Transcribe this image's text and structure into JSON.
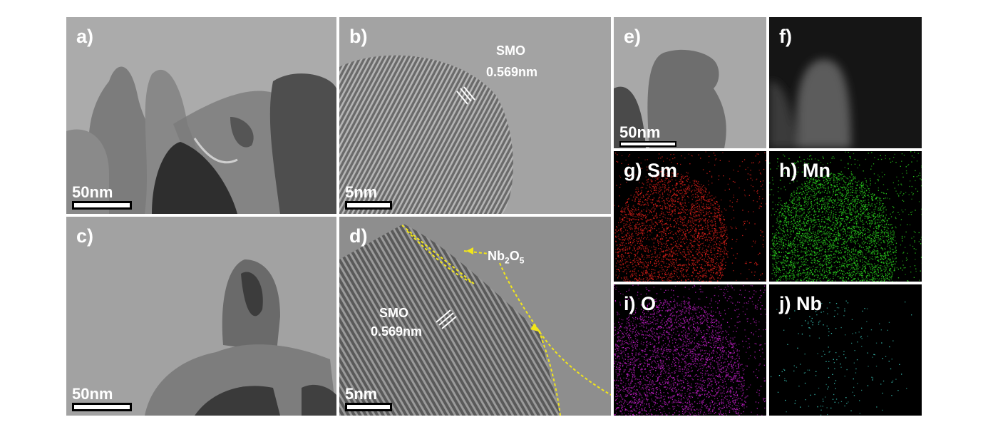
{
  "panels": {
    "a": {
      "label": "a)",
      "scale": "50nm"
    },
    "b": {
      "label": "b)",
      "scale": "5nm",
      "phase": "SMO",
      "spacing": "0.569nm"
    },
    "c": {
      "label": "c)",
      "scale": "50nm"
    },
    "d": {
      "label": "d)",
      "scale": "5nm",
      "phase": "SMO",
      "spacing": "0.569nm",
      "coating": "Nb",
      "coating_sub1": "2",
      "coating_mid": "O",
      "coating_sub2": "5"
    },
    "e": {
      "label": "e)",
      "scale": "50nm"
    },
    "f": {
      "label": "f)"
    },
    "g": {
      "label": "g) Sm",
      "color": "#e0201a"
    },
    "h": {
      "label": "h) Mn",
      "color": "#2ad21e"
    },
    "i": {
      "label": "i) O",
      "color": "#c21ec8"
    },
    "j": {
      "label": "j) Nb",
      "color": "#3fd6c8"
    }
  },
  "colors": {
    "annotation": "#f2e61a"
  }
}
